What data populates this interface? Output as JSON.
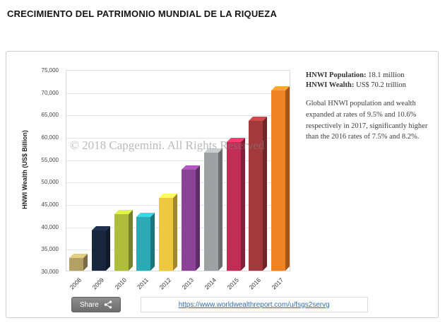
{
  "page": {
    "title": "CRECIMIENTO DEL PATRIMONIO MUNDIAL DE LA RIQUEZA"
  },
  "chart_data": {
    "type": "bar",
    "title": "",
    "xlabel": "",
    "ylabel": "HNWI Wealth (US$ Billion)",
    "ylim": [
      30000,
      75000
    ],
    "ytick_step": 5000,
    "yticks": [
      "75,000",
      "70,000",
      "65,000",
      "60,000",
      "55,000",
      "50,000",
      "45,000",
      "40,000",
      "35,000",
      "30,000"
    ],
    "categories": [
      "2008",
      "2009",
      "2010",
      "2011",
      "2012",
      "2013",
      "2014",
      "2015",
      "2016",
      "2017"
    ],
    "values": [
      32800,
      39000,
      42700,
      42000,
      46200,
      52600,
      56400,
      58700,
      63500,
      70200
    ],
    "colors": [
      "#b3a065",
      "#18263e",
      "#aebd3c",
      "#2caab5",
      "#eec83f",
      "#8b4397",
      "#9fa0a2",
      "#c22d56",
      "#a2393c",
      "#ef8222"
    ],
    "grid": true,
    "legend": "none",
    "watermark": "© 2018 Capgemini. All Rights Reserved"
  },
  "stats": {
    "population_label": "HNWI Population:",
    "population_value": "18.1 million",
    "wealth_label": "HNWI Wealth:",
    "wealth_value": "US$ 70.2 trillion",
    "description": "Global HNWI population and wealth expanded at rates of 9.5% and 10.6% respectively in 2017, significantly higher than the 2016 rates of 7.5% and 8.2%."
  },
  "footer": {
    "share_label": "Share",
    "share_icon": "share-network-icon",
    "share_url": "https://www.worldwealthreport.com/u/fsgs2servg",
    "link_color": "#2f6fb0"
  }
}
